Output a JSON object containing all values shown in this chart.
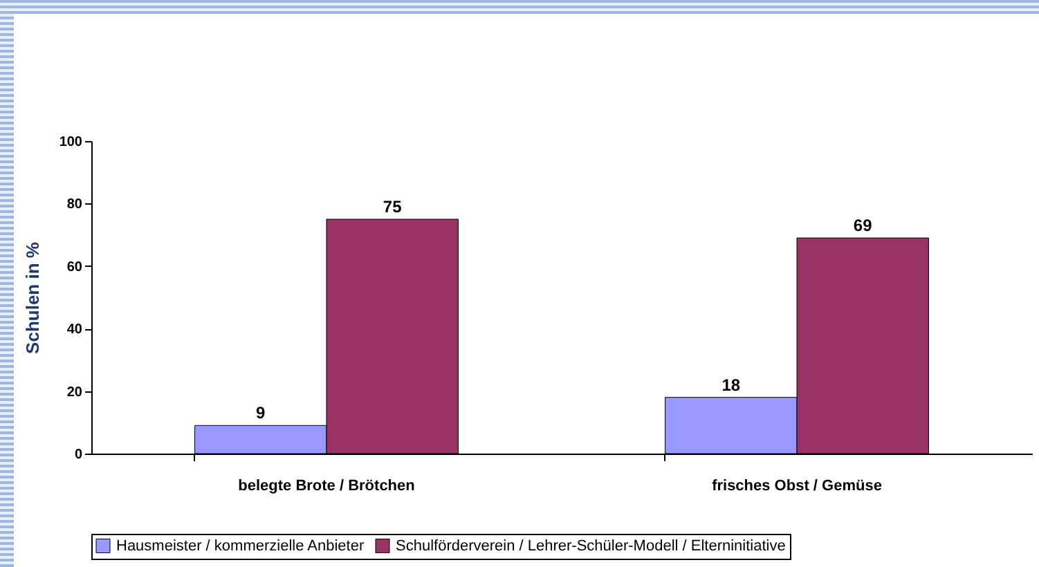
{
  "chart_data": {
    "type": "bar",
    "ylabel": "Schulen in %",
    "categories": [
      "belegte Brote / Brötchen",
      "frisches Obst / Gemüse"
    ],
    "series": [
      {
        "name": "Hausmeister / kommerzielle Anbieter",
        "color": "#9999ff",
        "values": [
          9,
          18
        ]
      },
      {
        "name": "Schulförderverein / Lehrer-Schüler-Modell / Elterninitiative",
        "color": "#993366",
        "values": [
          75,
          69
        ]
      }
    ],
    "ylim": [
      0,
      100
    ],
    "yticks": [
      0,
      20,
      40,
      60,
      80,
      100
    ],
    "grid": false,
    "legend": "bottom",
    "data_labels": true
  }
}
